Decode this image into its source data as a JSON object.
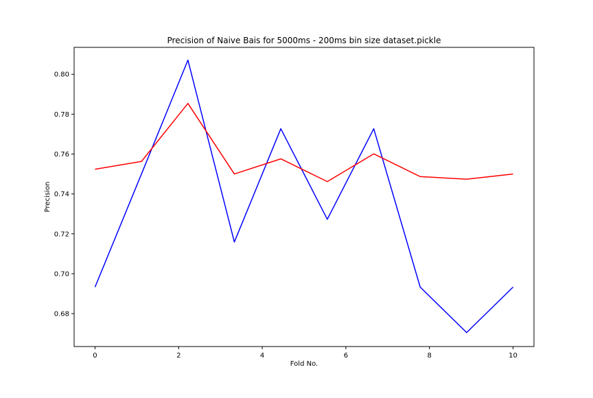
{
  "chart_data": {
    "type": "line",
    "title": "Precision of Naive Bais for 5000ms - 200ms bin size dataset.pickle",
    "xlabel": "Fold No.",
    "ylabel": "Precision",
    "xlim": [
      -0.5,
      10.5
    ],
    "ylim": [
      0.6635,
      0.8135
    ],
    "grid": false,
    "x_ticks": [
      0,
      2,
      4,
      6,
      8,
      10
    ],
    "x_tick_labels": [
      "0",
      "2",
      "4",
      "6",
      "8",
      "10"
    ],
    "y_ticks": [
      0.68,
      0.7,
      0.72,
      0.74,
      0.76,
      0.78,
      0.8
    ],
    "y_tick_labels": [
      "0.68",
      "0.70",
      "0.72",
      "0.74",
      "0.76",
      "0.78",
      "0.80"
    ],
    "x": [
      0,
      1.111,
      2.222,
      3.333,
      4.444,
      5.556,
      6.667,
      7.778,
      8.889,
      10
    ],
    "series": [
      {
        "color": "#0000ff",
        "values": [
          0.6933,
          0.75,
          0.8071,
          0.7159,
          0.7727,
          0.7273,
          0.7727,
          0.6933,
          0.6705,
          0.6933
        ]
      },
      {
        "color": "#ff0000",
        "values": [
          0.7524,
          0.7563,
          0.7854,
          0.75,
          0.7576,
          0.7462,
          0.7601,
          0.7487,
          0.7474,
          0.75
        ]
      }
    ]
  }
}
